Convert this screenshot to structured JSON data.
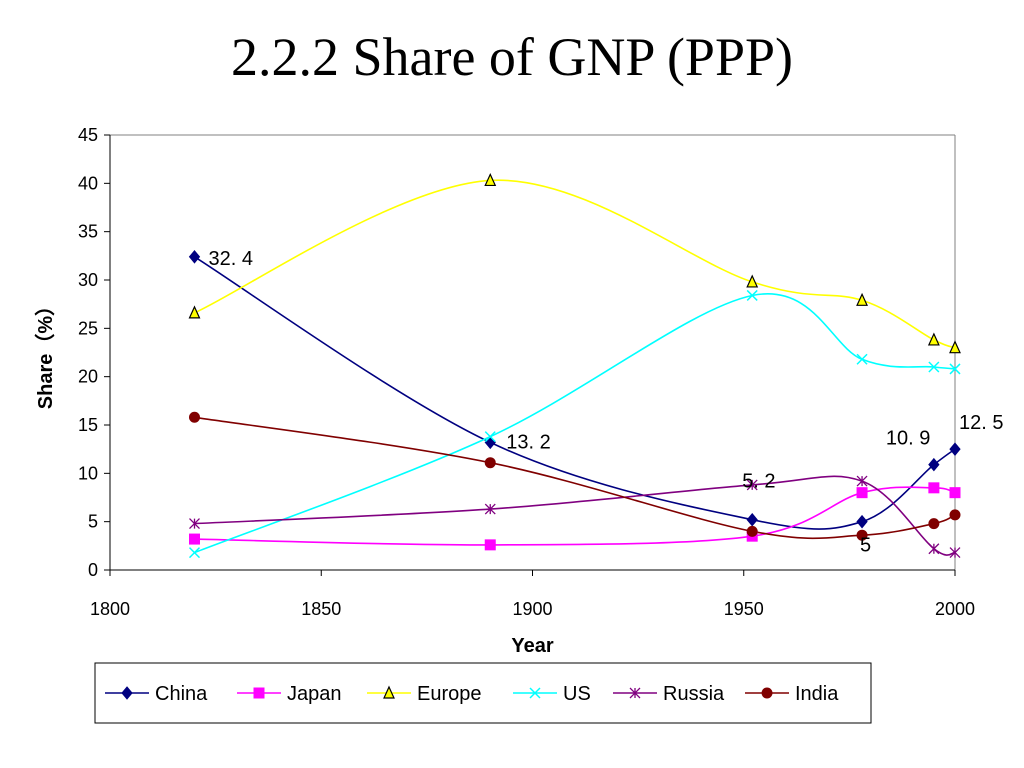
{
  "slide": {
    "title": "2.2.2 Share of GNP (PPP)"
  },
  "chart_data": {
    "type": "line",
    "xlabel": "Year",
    "ylabel": "Share（%）",
    "xlim": [
      1800,
      2000
    ],
    "ylim": [
      0,
      45
    ],
    "xticks": [
      1800,
      1850,
      1900,
      1950,
      2000
    ],
    "yticks": [
      0,
      5,
      10,
      15,
      20,
      25,
      30,
      35,
      40,
      45
    ],
    "grid": false,
    "legend_position": "bottom",
    "series": [
      {
        "name": "China",
        "color": "#000080",
        "marker": "diamond",
        "points": [
          [
            1820,
            32.4
          ],
          [
            1890,
            13.2
          ],
          [
            1952,
            5.2
          ],
          [
            1978,
            5.0
          ],
          [
            1995,
            10.9
          ],
          [
            2000,
            12.5
          ]
        ]
      },
      {
        "name": "Japan",
        "color": "#FF00FF",
        "marker": "square",
        "points": [
          [
            1820,
            3.2
          ],
          [
            1890,
            2.6
          ],
          [
            1952,
            3.5
          ],
          [
            1978,
            8.0
          ],
          [
            1995,
            8.5
          ],
          [
            2000,
            8.0
          ]
        ]
      },
      {
        "name": "Europe",
        "color": "#FFFF00",
        "marker": "triangle",
        "points": [
          [
            1820,
            26.6
          ],
          [
            1890,
            40.3
          ],
          [
            1952,
            29.8
          ],
          [
            1978,
            27.9
          ],
          [
            1995,
            23.8
          ],
          [
            2000,
            23.0
          ]
        ]
      },
      {
        "name": "US",
        "color": "#00FFFF",
        "marker": "x",
        "points": [
          [
            1820,
            1.8
          ],
          [
            1890,
            13.8
          ],
          [
            1952,
            28.4
          ],
          [
            1978,
            21.8
          ],
          [
            1995,
            21.0
          ],
          [
            2000,
            20.8
          ]
        ]
      },
      {
        "name": "Russia",
        "color": "#800080",
        "marker": "star",
        "points": [
          [
            1820,
            4.8
          ],
          [
            1890,
            6.3
          ],
          [
            1952,
            8.8
          ],
          [
            1978,
            9.2
          ],
          [
            1995,
            2.2
          ],
          [
            2000,
            1.8
          ]
        ]
      },
      {
        "name": "India",
        "color": "#800000",
        "marker": "circle",
        "points": [
          [
            1820,
            15.8
          ],
          [
            1890,
            11.1
          ],
          [
            1952,
            4.0
          ],
          [
            1978,
            3.6
          ],
          [
            1995,
            4.8
          ],
          [
            2000,
            5.7
          ]
        ]
      }
    ],
    "annotations": [
      {
        "text": "32. 4",
        "x": 1820,
        "y": 32.4
      },
      {
        "text": "13. 2",
        "x": 1890,
        "y": 13.2
      },
      {
        "text": "5. 2",
        "x": 1952,
        "y": 5.2
      },
      {
        "text": "5",
        "x": 1978,
        "y": 5.0
      },
      {
        "text": "10. 9",
        "x": 1995,
        "y": 10.9
      },
      {
        "text": "12. 5",
        "x": 2000,
        "y": 12.5
      }
    ]
  }
}
